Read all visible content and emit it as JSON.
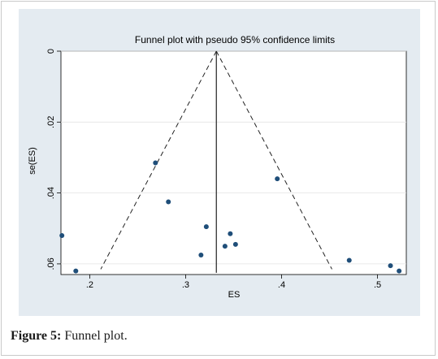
{
  "chart_data": {
    "type": "scatter",
    "title": "Funnel plot with pseudo 95% confidence limits",
    "xlabel": "ES",
    "ylabel": "se(ES)",
    "xlim": [
      0.17,
      0.53
    ],
    "ylim": [
      0.063,
      0
    ],
    "y_reversed": true,
    "grid": true,
    "x_ticks": [
      0.2,
      0.3,
      0.4,
      0.5
    ],
    "x_tick_labels": [
      ".2",
      ".3",
      ".4",
      ".5"
    ],
    "y_ticks": [
      0,
      0.02,
      0.04,
      0.06
    ],
    "y_tick_labels": [
      "0",
      ".02",
      ".04",
      ".06"
    ],
    "pooled_effect": 0.332,
    "funnel_limits": {
      "left": [
        [
          0.332,
          0
        ],
        [
          0.2115,
          0.0615
        ]
      ],
      "right": [
        [
          0.332,
          0
        ],
        [
          0.4525,
          0.0615
        ]
      ]
    },
    "pooled_line_range": [
      0,
      0.0625
    ],
    "points": [
      {
        "x": 0.171,
        "y": 0.052
      },
      {
        "x": 0.1855,
        "y": 0.062
      },
      {
        "x": 0.2685,
        "y": 0.0315
      },
      {
        "x": 0.282,
        "y": 0.0425
      },
      {
        "x": 0.316,
        "y": 0.0575
      },
      {
        "x": 0.3215,
        "y": 0.0495
      },
      {
        "x": 0.341,
        "y": 0.055
      },
      {
        "x": 0.3465,
        "y": 0.0515
      },
      {
        "x": 0.352,
        "y": 0.0545
      },
      {
        "x": 0.3955,
        "y": 0.036
      },
      {
        "x": 0.4705,
        "y": 0.059
      },
      {
        "x": 0.5135,
        "y": 0.0605
      },
      {
        "x": 0.5225,
        "y": 0.062
      }
    ]
  },
  "colors": {
    "panel": "#e4ebf1",
    "marker": "#1f4e79",
    "axis": "#000000",
    "grid": "#ffffff"
  },
  "caption": {
    "label": "Figure 5:",
    "text": " Funnel plot."
  }
}
